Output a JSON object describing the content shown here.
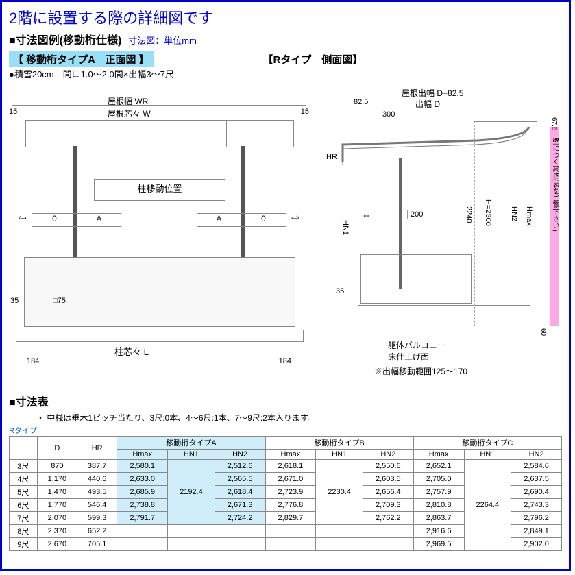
{
  "title": "2階に設置する際の詳細図です",
  "section1": {
    "heading": "■寸法図例(移動桁仕様)",
    "unit": "寸法図：単位mm",
    "front_label": "【 移動桁タイプA　正面図 】",
    "side_label": "【Rタイプ　側面図】",
    "snow_note": "●積雪20cm　間口1.0～2.0間×出幅3～7尺"
  },
  "front_diag": {
    "roof_w": "屋根幅 WR",
    "roof_cl": "屋根芯々 W",
    "pillar_move": "柱移動位置",
    "pillar_cl": "柱芯々 L",
    "edge15": "15",
    "edge184": "184",
    "edge35": "35",
    "sq75": "□75",
    "a": "A",
    "zero": "0"
  },
  "side_diag": {
    "roof_out": "屋根出幅  D+82.5",
    "out_w": "出幅 D",
    "v825": "82.5",
    "v300": "300",
    "v675": "67.5",
    "hr": "HR",
    "hn1": "HN1",
    "hn2": "HN2",
    "hmax": "Hmax",
    "h2300": "H=2300",
    "v2240": "2240",
    "v35": "35",
    "v60": "60",
    "arrow200": "200",
    "body": "躯体バルコニー",
    "floor": "床仕上げ面",
    "move_range": "※出幅移動範囲125～170",
    "pink_note": "壁につく高さ(表をご覧下さい)"
  },
  "dim": {
    "heading": "■寸法表",
    "note": "・ 中桟は垂木1ピッチ当たり、3尺:0本、4～6尺:1本、7～9尺:2本入ります。",
    "r_type": "Rタイプ",
    "cols": {
      "d": "D",
      "hr": "HR",
      "a": "移動桁タイプA",
      "b": "移動桁タイプB",
      "c": "移動桁タイプC",
      "hmax": "Hmax",
      "hn1": "HN1",
      "hn2": "HN2"
    },
    "rows": [
      {
        "k": "3尺",
        "d": "870",
        "hr": "387.7",
        "a": {
          "hmax": "2,580.1",
          "hn2": "2,512.6"
        },
        "b": {
          "hmax": "2,618.1",
          "hn2": "2,550.6"
        },
        "c": {
          "hmax": "2,652.1",
          "hn2": "2,584.6"
        }
      },
      {
        "k": "4尺",
        "d": "1,170",
        "hr": "440.6",
        "a": {
          "hmax": "2,633.0",
          "hn2": "2,565.5"
        },
        "b": {
          "hmax": "2,671.0",
          "hn2": "2,603.5"
        },
        "c": {
          "hmax": "2,705.0",
          "hn2": "2,637.5"
        }
      },
      {
        "k": "5尺",
        "d": "1,470",
        "hr": "493.5",
        "a": {
          "hmax": "2,685.9",
          "hn2": "2,618.4"
        },
        "b": {
          "hmax": "2,723.9",
          "hn2": "2,656.4"
        },
        "c": {
          "hmax": "2,757.9",
          "hn2": "2,690.4"
        }
      },
      {
        "k": "6尺",
        "d": "1,770",
        "hr": "546.4",
        "a": {
          "hmax": "2,738.8",
          "hn2": "2,671.3"
        },
        "b": {
          "hmax": "2,776.8",
          "hn2": "2,709.3"
        },
        "c": {
          "hmax": "2,810.8",
          "hn2": "2,743.3"
        }
      },
      {
        "k": "7尺",
        "d": "2,070",
        "hr": "599.3",
        "a": {
          "hmax": "2,791.7",
          "hn2": "2,724.2"
        },
        "b": {
          "hmax": "2,829.7",
          "hn2": "2,762.2"
        },
        "c": {
          "hmax": "2,863.7",
          "hn2": "2,796.2"
        }
      },
      {
        "k": "8尺",
        "d": "2,370",
        "hr": "652.2",
        "a": null,
        "b": null,
        "c": {
          "hmax": "2,916.6",
          "hn2": "2,849.1"
        }
      },
      {
        "k": "9尺",
        "d": "2,670",
        "hr": "705.1",
        "a": null,
        "b": null,
        "c": {
          "hmax": "2,969.5",
          "hn2": "2,902.0"
        }
      }
    ],
    "hn1": {
      "a": "2192.4",
      "b": "2230.4",
      "c": "2264.4"
    }
  }
}
